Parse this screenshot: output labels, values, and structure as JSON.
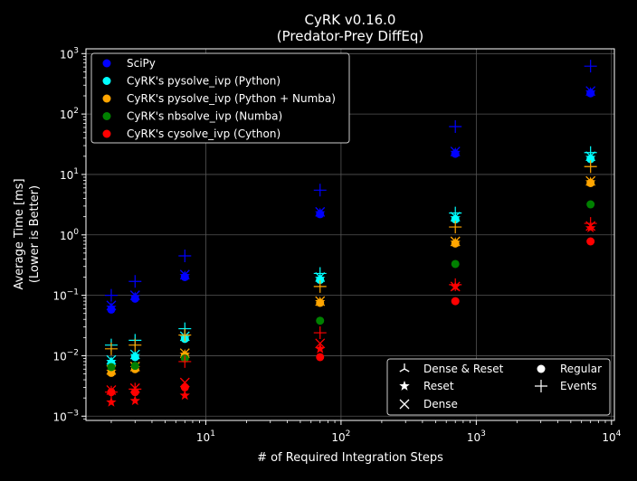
{
  "chart_data": {
    "type": "scatter",
    "title_line1": "CyRK v0.16.0",
    "title_line2": "(Predator-Prey DiffEq)",
    "xlabel": "# of Required Integration Steps",
    "ylabel_line1": "Average Time [ms]",
    "ylabel_line2": "(Lower is Better)",
    "x_scale": "log",
    "y_scale": "log",
    "xlim": [
      1.3,
      10500
    ],
    "ylim": [
      0.00085,
      1200
    ],
    "x_ticks": [
      {
        "value": 10,
        "base": "10",
        "exp": "1"
      },
      {
        "value": 100,
        "base": "10",
        "exp": "2"
      },
      {
        "value": 1000,
        "base": "10",
        "exp": "3"
      },
      {
        "value": 10000,
        "base": "10",
        "exp": "4"
      }
    ],
    "y_ticks": [
      {
        "value": 0.001,
        "base": "10",
        "exp": "−3"
      },
      {
        "value": 0.01,
        "base": "10",
        "exp": "−2"
      },
      {
        "value": 0.1,
        "base": "10",
        "exp": "−1"
      },
      {
        "value": 1,
        "base": "10",
        "exp": "0"
      },
      {
        "value": 10,
        "base": "10",
        "exp": "1"
      },
      {
        "value": 100,
        "base": "10",
        "exp": "2"
      },
      {
        "value": 1000,
        "base": "10",
        "exp": "3"
      }
    ],
    "grid": true,
    "x": [
      2,
      3,
      7,
      70,
      700,
      7000
    ],
    "series": [
      {
        "name": "SciPy",
        "color": "#0000ff",
        "regular": [
          0.058,
          0.088,
          0.2,
          2.2,
          22,
          220
        ],
        "events": [
          0.1,
          0.17,
          0.45,
          5.5,
          62,
          620
        ],
        "dense": [
          0.068,
          0.1,
          0.22,
          2.4,
          24,
          240
        ],
        "dense_reset": [
          0.063,
          0.094,
          0.21,
          2.3,
          23,
          230
        ]
      },
      {
        "name": "CyRK's pysolve_ivp (Python)",
        "color": "#00ffff",
        "regular": [
          0.0075,
          0.0095,
          0.019,
          0.18,
          1.8,
          18
        ],
        "events": [
          0.015,
          0.018,
          0.028,
          0.23,
          2.3,
          23
        ],
        "dense": [
          0.0085,
          0.0105,
          0.021,
          0.2,
          2.0,
          20
        ],
        "dense_reset": [
          0.008,
          0.01,
          0.02,
          0.19,
          1.9,
          19
        ]
      },
      {
        "name": "CyRK's pysolve_ivp (Python + Numba)",
        "color": "#ffa500",
        "regular": [
          0.0052,
          0.006,
          0.01,
          0.075,
          0.72,
          7.2
        ],
        "events": [
          0.013,
          0.015,
          0.022,
          0.14,
          1.35,
          13.5
        ],
        "dense": [
          0.0058,
          0.0066,
          0.011,
          0.08,
          0.78,
          7.8
        ],
        "dense_reset": [
          0.0055,
          0.0063,
          0.0105,
          0.078,
          0.75,
          7.5
        ]
      },
      {
        "name": "CyRK's nbsolve_ivp (Numba)",
        "color": "#008000",
        "regular": [
          0.0065,
          0.0068,
          0.009,
          0.038,
          0.33,
          3.2
        ]
      },
      {
        "name": "CyRK's cysolve_ivp (Cython)",
        "color": "#ff0000",
        "regular": [
          0.0025,
          0.0025,
          0.003,
          0.0095,
          0.08,
          0.78
        ],
        "events": [
          0.0025,
          0.0028,
          0.008,
          0.024,
          0.15,
          1.55
        ],
        "dense": [
          0.0027,
          0.0029,
          0.0036,
          0.016,
          0.14,
          1.4
        ],
        "dense_reset": [
          0.0017,
          0.0018,
          0.0022,
          0.013,
          0.14,
          1.3
        ]
      }
    ],
    "legend_series_placement": "top-left",
    "legend_markers": [
      {
        "label": "Dense & Reset",
        "shape": "tri"
      },
      {
        "label": "Regular",
        "shape": "circle"
      },
      {
        "label": "Reset",
        "shape": "star"
      },
      {
        "label": "Events",
        "shape": "plus"
      },
      {
        "label": "Dense",
        "shape": "x"
      }
    ],
    "legend_markers_placement": "bottom-right"
  }
}
